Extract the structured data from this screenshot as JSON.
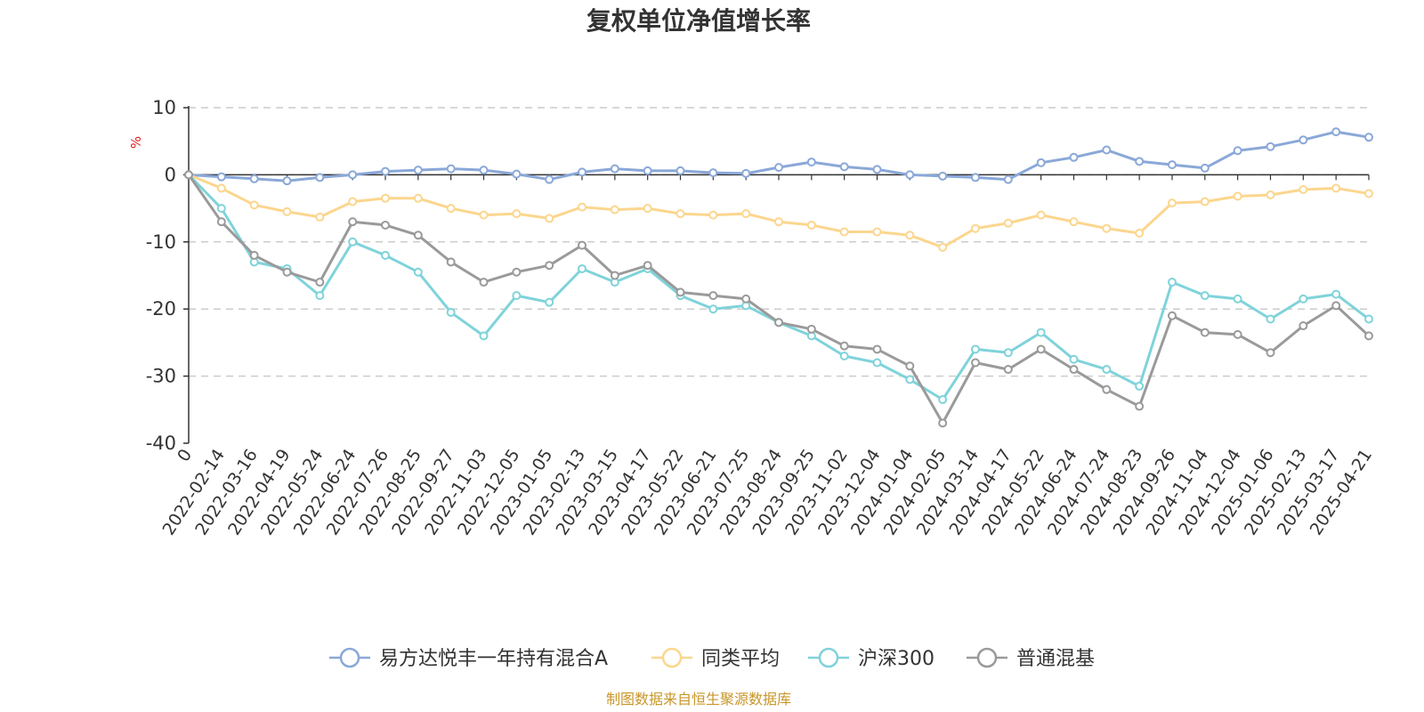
{
  "chart_data": {
    "type": "line",
    "title": "复权单位净值增长率",
    "ylabel": "%",
    "xlabel": "",
    "ylim": [
      -40,
      10
    ],
    "yticks": [
      10,
      0,
      -10,
      -20,
      -30,
      -40
    ],
    "grid": true,
    "legend_position": "bottom-center",
    "source": "制图数据来自恒生聚源数据库",
    "x_ticks": [
      "0",
      "2022-02-14",
      "2022-03-16",
      "2022-04-19",
      "2022-05-24",
      "2022-06-24",
      "2022-07-26",
      "2022-08-25",
      "2022-09-27",
      "2022-11-03",
      "2022-12-05",
      "2023-01-05",
      "2023-02-13",
      "2023-03-15",
      "2023-04-17",
      "2023-05-22",
      "2023-06-21",
      "2023-07-25",
      "2023-08-24",
      "2023-09-25",
      "2023-11-02",
      "2023-12-04",
      "2024-01-04",
      "2024-02-05",
      "2024-03-14",
      "2024-04-17",
      "2024-05-22",
      "2024-06-24",
      "2024-07-24",
      "2024-08-23",
      "2024-09-26",
      "2024-11-04",
      "2024-12-04",
      "2025-01-06",
      "2025-02-13",
      "2025-03-17",
      "2025-04-21"
    ],
    "series": [
      {
        "name": "易方达悦丰一年持有混合A",
        "color": "#8aa8d8",
        "values": [
          0,
          -0.3,
          -0.6,
          -0.9,
          -0.4,
          0.0,
          0.5,
          0.7,
          0.9,
          0.7,
          0.1,
          -0.7,
          0.4,
          0.9,
          0.6,
          0.6,
          0.3,
          0.2,
          1.1,
          1.9,
          1.2,
          0.8,
          0.0,
          -0.2,
          -0.4,
          -0.7,
          1.8,
          2.6,
          3.7,
          2.0,
          1.5,
          1.0,
          3.6,
          4.2,
          5.2,
          6.4,
          5.6
        ]
      },
      {
        "name": "同类平均",
        "color": "#fbd68e",
        "values": [
          0,
          -2.0,
          -4.5,
          -5.5,
          -6.3,
          -4.0,
          -3.5,
          -3.5,
          -5.0,
          -6.0,
          -5.8,
          -6.5,
          -4.8,
          -5.2,
          -5.0,
          -5.8,
          -6.0,
          -5.8,
          -7.0,
          -7.5,
          -8.5,
          -8.5,
          -9.0,
          -10.8,
          -8.0,
          -7.2,
          -6.0,
          -7.0,
          -8.0,
          -8.7,
          -4.2,
          -4.0,
          -3.2,
          -3.0,
          -2.2,
          -2.0,
          -2.8
        ]
      },
      {
        "name": "沪深300",
        "color": "#7fd3da",
        "values": [
          0,
          -5.0,
          -13.0,
          -14.0,
          -18.0,
          -10.0,
          -12.0,
          -14.5,
          -20.5,
          -24.0,
          -18.0,
          -19.0,
          -14.0,
          -16.0,
          -14.0,
          -18.0,
          -20.0,
          -19.5,
          -22.0,
          -24.0,
          -27.0,
          -28.0,
          -30.5,
          -33.5,
          -26.0,
          -26.5,
          -23.5,
          -27.5,
          -29.0,
          -31.5,
          -16.0,
          -18.0,
          -18.5,
          -21.5,
          -18.5,
          -17.8,
          -21.5
        ]
      },
      {
        "name": "普通混基",
        "color": "#9a9a9a",
        "values": [
          0,
          -7.0,
          -12.0,
          -14.5,
          -16.0,
          -7.0,
          -7.5,
          -9.0,
          -13.0,
          -16.0,
          -14.5,
          -13.5,
          -10.5,
          -15.0,
          -13.5,
          -17.5,
          -18.0,
          -18.5,
          -22.0,
          -23.0,
          -25.5,
          -26.0,
          -28.5,
          -37.0,
          -28.0,
          -29.0,
          -26.0,
          -29.0,
          -32.0,
          -34.5,
          -21.0,
          -23.5,
          -23.8,
          -26.5,
          -22.5,
          -19.5,
          -24.0
        ]
      }
    ]
  }
}
